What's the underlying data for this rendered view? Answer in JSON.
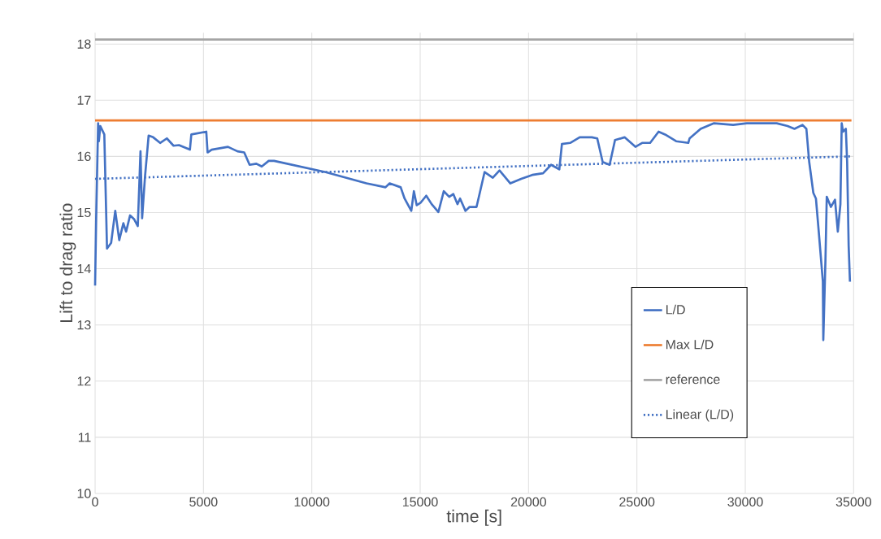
{
  "chart_data": {
    "type": "line",
    "xlabel": "time [s]",
    "ylabel": "Lift to drag ratio",
    "xlim": [
      0,
      35000
    ],
    "ylim": [
      10,
      18.2
    ],
    "xticks": [
      0,
      5000,
      10000,
      15000,
      20000,
      25000,
      30000,
      35000
    ],
    "yticks": [
      10,
      11,
      12,
      13,
      14,
      15,
      16,
      17,
      18
    ],
    "grid": true,
    "legend": "bottom right",
    "marker": "none",
    "series": [
      {
        "name": "L/D",
        "color": "#4472c4",
        "line_style": "solid",
        "x": [
          0,
          50,
          140,
          175,
          240,
          425,
          550,
          740,
          930,
          1115,
          1305,
          1430,
          1615,
          1805,
          1970,
          2095,
          2170,
          2305,
          2470,
          2680,
          3000,
          3310,
          3620,
          3870,
          4375,
          4440,
          5130,
          5190,
          5380,
          6130,
          6570,
          6880,
          7130,
          7440,
          7690,
          8010,
          8260,
          10640,
          12520,
          13400,
          13590,
          14100,
          14280,
          14590,
          14710,
          14840,
          15030,
          15280,
          15530,
          15840,
          16090,
          16340,
          16530,
          16720,
          16840,
          17090,
          17280,
          17600,
          17720,
          17970,
          18350,
          18660,
          19160,
          19660,
          20170,
          20670,
          21040,
          21420,
          21540,
          21920,
          22360,
          22920,
          23170,
          23420,
          23740,
          23990,
          24430,
          24930,
          25240,
          25610,
          26000,
          26300,
          26810,
          27370,
          27430,
          27940,
          28560,
          29440,
          30070,
          30700,
          31450,
          31950,
          32270,
          32640,
          32820,
          32950,
          33140,
          33260,
          33390,
          33580,
          33600,
          33700,
          33760,
          33950,
          34140,
          34270,
          34390,
          34450,
          34510,
          34640,
          34700,
          34770,
          34830
        ],
        "values": [
          13.7,
          14.9,
          16.59,
          16.27,
          16.54,
          16.39,
          14.36,
          14.46,
          15.03,
          14.51,
          14.81,
          14.66,
          14.95,
          14.88,
          14.76,
          16.09,
          14.9,
          15.65,
          16.37,
          16.34,
          16.24,
          16.32,
          16.19,
          16.2,
          16.12,
          16.39,
          16.44,
          16.07,
          16.12,
          16.17,
          16.09,
          16.07,
          15.85,
          15.87,
          15.82,
          15.92,
          15.92,
          15.72,
          15.52,
          15.45,
          15.52,
          15.45,
          15.25,
          15.03,
          15.38,
          15.13,
          15.18,
          15.3,
          15.15,
          15.01,
          15.38,
          15.28,
          15.33,
          15.15,
          15.25,
          15.03,
          15.1,
          15.1,
          15.3,
          15.72,
          15.62,
          15.75,
          15.52,
          15.6,
          15.67,
          15.7,
          15.85,
          15.77,
          16.22,
          16.24,
          16.34,
          16.34,
          16.32,
          15.9,
          15.85,
          16.29,
          16.34,
          16.17,
          16.24,
          16.24,
          16.44,
          16.39,
          16.27,
          16.24,
          16.32,
          16.49,
          16.59,
          16.56,
          16.59,
          16.59,
          16.59,
          16.54,
          16.49,
          16.56,
          16.49,
          15.9,
          15.35,
          15.25,
          14.66,
          13.77,
          12.73,
          14.16,
          15.28,
          15.1,
          15.23,
          14.66,
          15.15,
          16.59,
          16.44,
          16.49,
          15.9,
          14.41,
          13.77
        ]
      },
      {
        "name": "Max L/D",
        "color": "#ed7d31",
        "line_style": "solid",
        "x": [
          0,
          34900
        ],
        "values": [
          16.64,
          16.64
        ]
      },
      {
        "name": "reference",
        "color": "#a5a5a5",
        "line_style": "solid",
        "x": [
          0,
          35000
        ],
        "values": [
          18.08,
          18.08
        ]
      },
      {
        "name": "Linear (L/D)",
        "color": "#4472c4",
        "line_style": "dotted",
        "x": [
          0,
          34830
        ],
        "values": [
          15.6,
          16.0
        ]
      }
    ]
  }
}
